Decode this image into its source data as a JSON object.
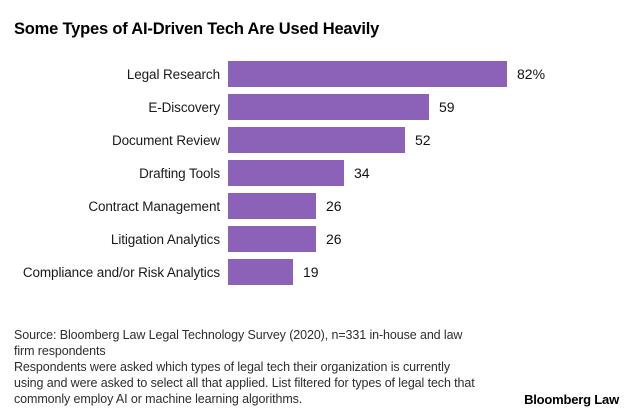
{
  "page": {
    "title": "Some Types of AI-Driven Tech Are Used Heavily"
  },
  "chart_data": {
    "type": "bar",
    "orientation": "horizontal",
    "title": "Some Types of AI-Driven Tech Are Used Heavily",
    "categories": [
      "Legal Research",
      "E-Discovery",
      "Document Review",
      "Drafting Tools",
      "Contract Management",
      "Litigation Analytics",
      "Compliance and/or Risk Analytics"
    ],
    "values": [
      82,
      59,
      52,
      34,
      26,
      26,
      19
    ],
    "value_labels": [
      "82%",
      "59",
      "52",
      "34",
      "26",
      "26",
      "19"
    ],
    "unit": "percent",
    "xlim": [
      0,
      100
    ],
    "grid": false,
    "legend": "none",
    "bar_color": "#8B62B8"
  },
  "footer": {
    "source_text": "Source: Bloomberg Law Legal Technology Survey (2020), n=331 in-house and law firm respondents",
    "note_text": "Respondents were asked which types of legal tech their organization is currently using and were asked to select all that applied. List filtered for types of legal tech that commonly employ AI or machine learning algorithms.",
    "brand": "Bloomberg Law"
  }
}
